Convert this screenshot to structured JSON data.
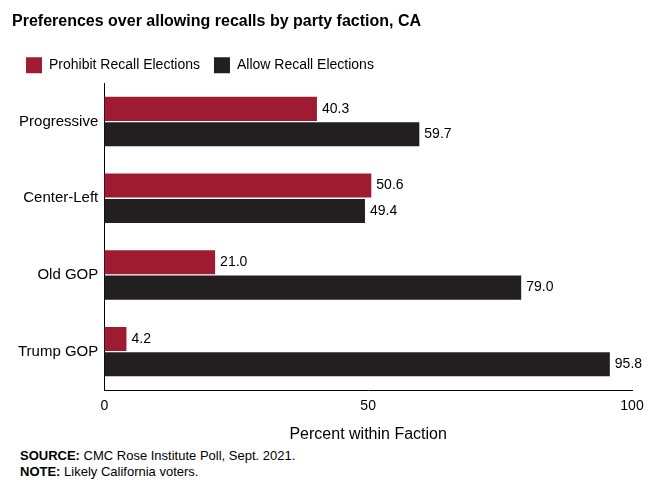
{
  "chart_data": {
    "type": "bar",
    "title": "Preferences over allowing recalls by party faction, CA",
    "orientation": "horizontal",
    "categories": [
      "Progressive",
      "Center-Left",
      "Old GOP",
      "Trump GOP"
    ],
    "series": [
      {
        "name": "Prohibit Recall Elections",
        "color": "#9e1b32",
        "values": [
          40.3,
          50.6,
          21.0,
          4.2
        ],
        "value_labels": [
          "40.3",
          "50.6",
          "21.0",
          "4.2"
        ]
      },
      {
        "name": "Allow Recall Elections",
        "color": "#231f20",
        "values": [
          59.7,
          49.4,
          79.0,
          95.8
        ],
        "value_labels": [
          "59.7",
          "49.4",
          "79.0",
          "95.8"
        ]
      }
    ],
    "x_label": "Percent within Faction",
    "xlim": [
      0,
      100
    ],
    "xticks": [
      0,
      50,
      100
    ],
    "grid": false,
    "legend": "top-left",
    "data_labels": true,
    "notes": [
      {
        "label": "SOURCE:",
        "text": "CMC Rose Institute Poll, Sept. 2021."
      },
      {
        "label": "NOTE:",
        "text": "Likely California voters."
      }
    ]
  }
}
